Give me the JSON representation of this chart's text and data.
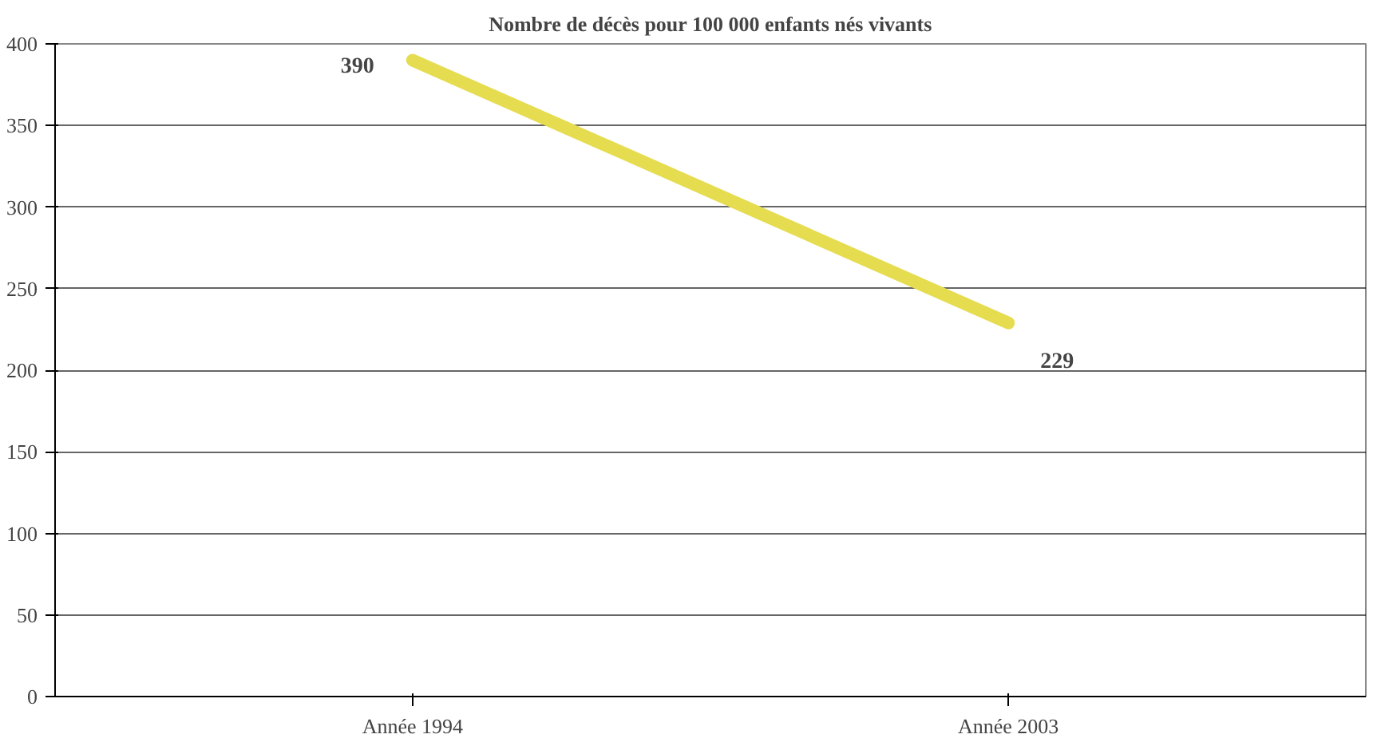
{
  "chart_data": {
    "type": "line",
    "title": "Nombre de décès pour 100 000 enfants nés vivants",
    "categories": [
      "Année 1994",
      "Année 2003"
    ],
    "series": [
      {
        "color": "#e6dc50",
        "values": [
          390,
          229
        ]
      }
    ],
    "ylim": [
      0,
      400
    ],
    "yticks": [
      0,
      50,
      100,
      150,
      200,
      250,
      300,
      350,
      400
    ],
    "grid": "y",
    "data_labels": true
  }
}
